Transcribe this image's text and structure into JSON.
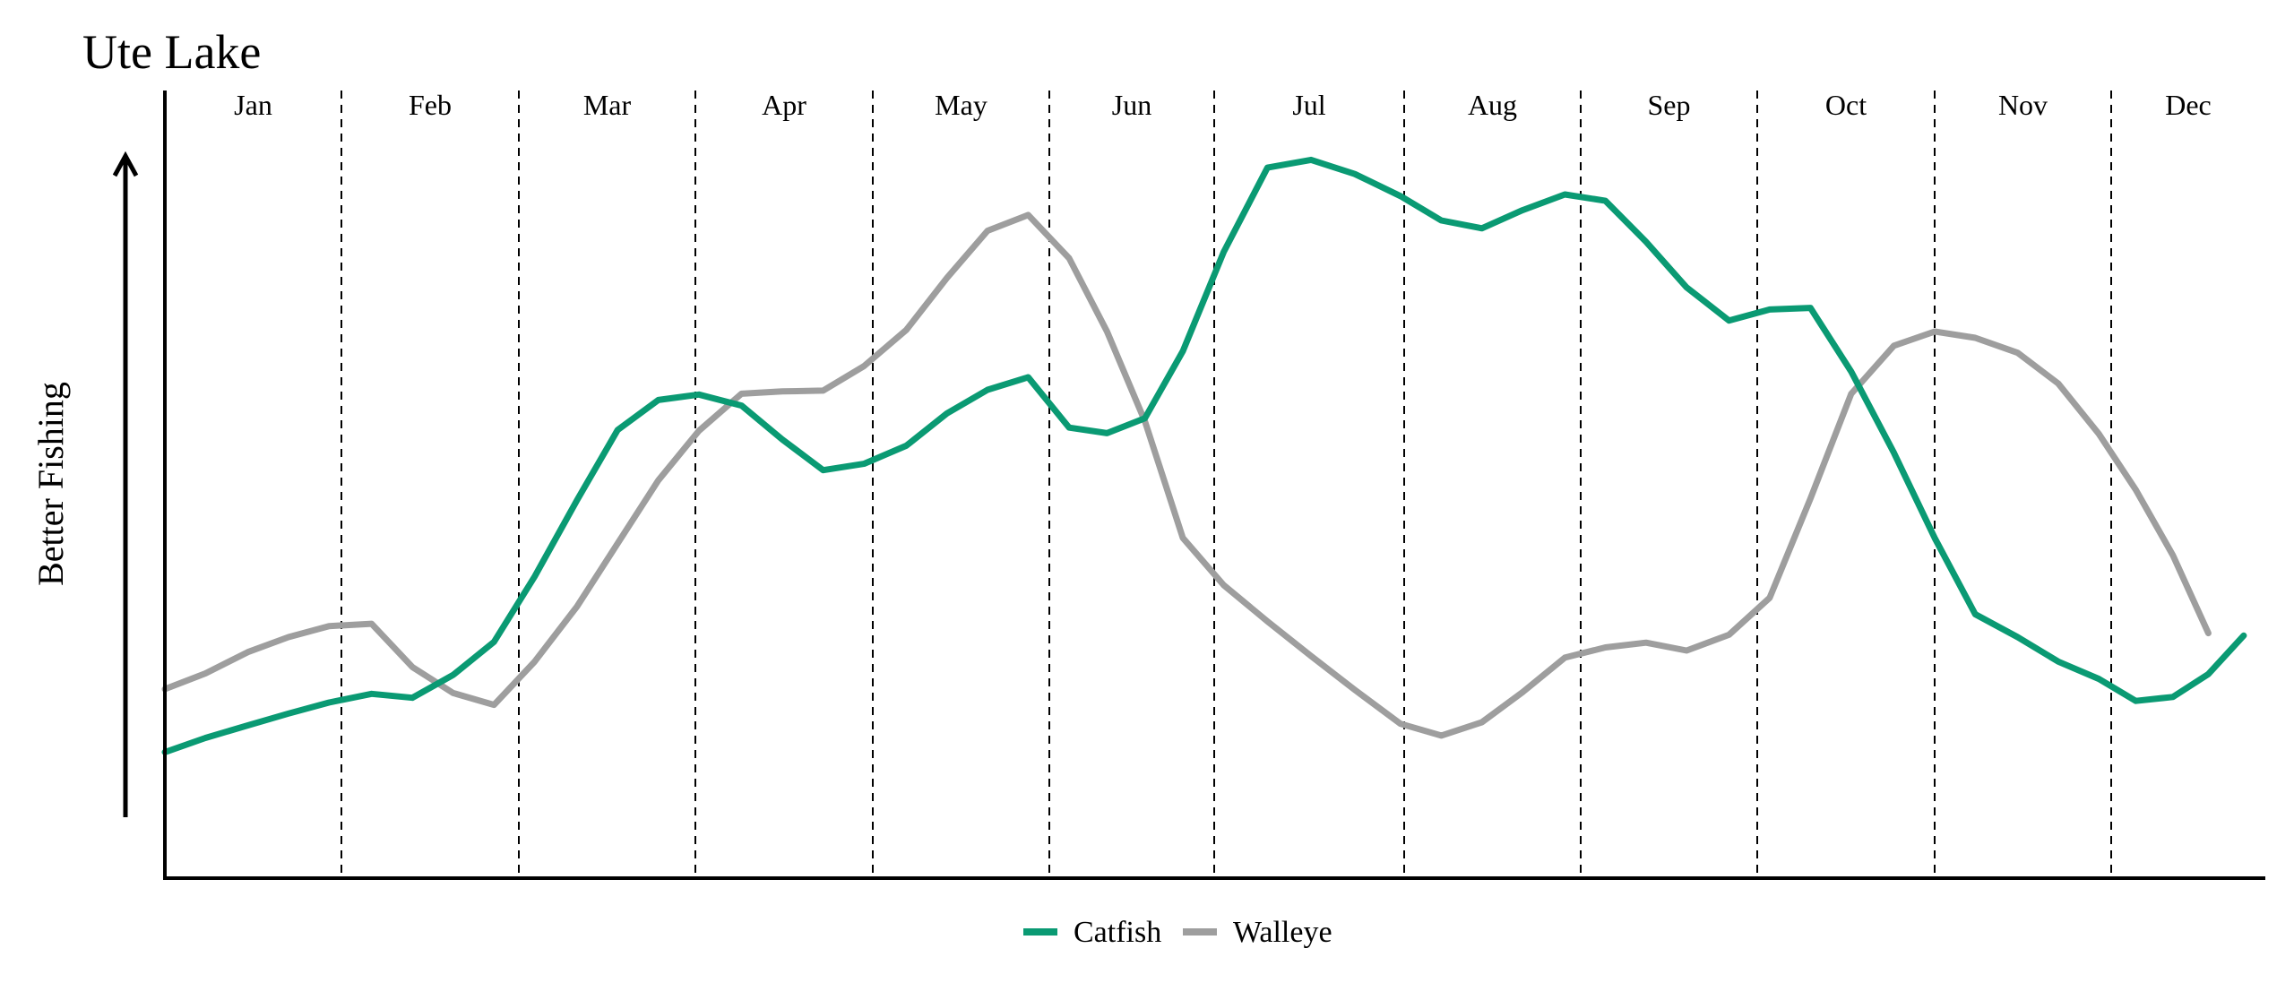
{
  "chart_data": {
    "type": "line",
    "title": "Ute Lake",
    "ylabel": "Better Fishing",
    "xlabel": "",
    "months": [
      "Jan",
      "Feb",
      "Mar",
      "Apr",
      "May",
      "Jun",
      "Jul",
      "Aug",
      "Sep",
      "Oct",
      "Nov",
      "Dec"
    ],
    "xlim": [
      0,
      12
    ],
    "ylim": [
      0,
      100
    ],
    "grid": "vertical month dividers",
    "legend": "bottom-center",
    "series": [
      {
        "name": "Catfish",
        "color": "#0a9a73",
        "points": [
          [
            0.0,
            16.0
          ],
          [
            0.23,
            17.8
          ],
          [
            0.47,
            19.4
          ],
          [
            0.7,
            20.9
          ],
          [
            0.93,
            22.3
          ],
          [
            1.17,
            23.4
          ],
          [
            1.4,
            22.9
          ],
          [
            1.63,
            25.8
          ],
          [
            1.86,
            30.0
          ],
          [
            2.09,
            38.3
          ],
          [
            2.33,
            48.0
          ],
          [
            2.56,
            56.9
          ],
          [
            2.79,
            60.7
          ],
          [
            3.02,
            61.4
          ],
          [
            3.26,
            60.0
          ],
          [
            3.49,
            55.7
          ],
          [
            3.72,
            51.8
          ],
          [
            3.95,
            52.6
          ],
          [
            4.19,
            54.9
          ],
          [
            4.42,
            59.0
          ],
          [
            4.65,
            62.0
          ],
          [
            4.88,
            63.6
          ],
          [
            5.12,
            57.2
          ],
          [
            5.35,
            56.5
          ],
          [
            5.58,
            58.4
          ],
          [
            5.81,
            66.9
          ],
          [
            6.05,
            79.5
          ],
          [
            6.28,
            90.2
          ],
          [
            6.51,
            91.2
          ],
          [
            6.74,
            89.4
          ],
          [
            6.98,
            86.6
          ],
          [
            7.21,
            83.5
          ],
          [
            7.44,
            82.5
          ],
          [
            7.67,
            84.8
          ],
          [
            7.91,
            86.8
          ],
          [
            8.14,
            86.0
          ],
          [
            8.37,
            80.8
          ],
          [
            8.6,
            75.0
          ],
          [
            8.84,
            70.8
          ],
          [
            9.07,
            72.2
          ],
          [
            9.3,
            72.4
          ],
          [
            9.53,
            64.3
          ],
          [
            9.77,
            54.0
          ],
          [
            10.0,
            43.2
          ],
          [
            10.23,
            33.5
          ],
          [
            10.47,
            30.6
          ],
          [
            10.7,
            27.5
          ],
          [
            10.93,
            25.3
          ],
          [
            11.16,
            22.5
          ],
          [
            11.4,
            23.0
          ],
          [
            11.63,
            25.9
          ],
          [
            11.86,
            30.8
          ]
        ]
      },
      {
        "name": "Walleye",
        "color": "#9e9e9e",
        "points": [
          [
            0.0,
            24.0
          ],
          [
            0.23,
            26.0
          ],
          [
            0.47,
            28.7
          ],
          [
            0.7,
            30.6
          ],
          [
            0.93,
            32.0
          ],
          [
            1.17,
            32.3
          ],
          [
            1.4,
            26.8
          ],
          [
            1.63,
            23.5
          ],
          [
            1.86,
            22.0
          ],
          [
            2.09,
            27.5
          ],
          [
            2.33,
            34.5
          ],
          [
            2.56,
            42.5
          ],
          [
            2.79,
            50.5
          ],
          [
            3.02,
            56.8
          ],
          [
            3.26,
            61.5
          ],
          [
            3.49,
            61.8
          ],
          [
            3.72,
            61.9
          ],
          [
            3.95,
            65.0
          ],
          [
            4.19,
            69.6
          ],
          [
            4.42,
            76.2
          ],
          [
            4.65,
            82.2
          ],
          [
            4.88,
            84.2
          ],
          [
            5.12,
            78.7
          ],
          [
            5.35,
            69.4
          ],
          [
            5.58,
            58.0
          ],
          [
            5.81,
            43.2
          ],
          [
            6.05,
            37.2
          ],
          [
            6.28,
            32.6
          ],
          [
            6.51,
            28.2
          ],
          [
            6.74,
            23.9
          ],
          [
            6.98,
            19.6
          ],
          [
            7.21,
            18.1
          ],
          [
            7.44,
            19.8
          ],
          [
            7.67,
            23.6
          ],
          [
            7.91,
            28.0
          ],
          [
            8.14,
            29.3
          ],
          [
            8.37,
            29.9
          ],
          [
            8.6,
            28.9
          ],
          [
            8.84,
            30.9
          ],
          [
            9.07,
            35.6
          ],
          [
            9.3,
            48.2
          ],
          [
            9.53,
            61.5
          ],
          [
            9.77,
            67.6
          ],
          [
            10.0,
            69.4
          ],
          [
            10.23,
            68.6
          ],
          [
            10.47,
            66.7
          ],
          [
            10.7,
            62.8
          ],
          [
            10.93,
            56.4
          ],
          [
            11.16,
            49.3
          ],
          [
            11.4,
            41.0
          ],
          [
            11.63,
            31.1
          ]
        ]
      }
    ]
  }
}
